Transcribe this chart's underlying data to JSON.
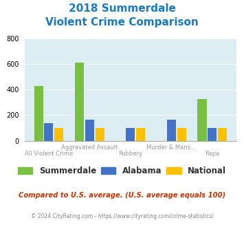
{
  "title_line1": "2018 Summerdale",
  "title_line2": "Violent Crime Comparison",
  "title_color": "#1a7abf",
  "categories": [
    "All Violent Crime",
    "Aggravated Assault",
    "Robbery",
    "Murder & Mans...",
    "Rape"
  ],
  "cat_labels_top": [
    "",
    "Aggravated Assault",
    "",
    "Murder & Mans...",
    ""
  ],
  "cat_labels_bot": [
    "All Violent Crime",
    "",
    "Robbery",
    "",
    "Rape"
  ],
  "summerdale": [
    430,
    610,
    0,
    0,
    325
  ],
  "alabama": [
    140,
    163,
    100,
    163,
    100
  ],
  "national": [
    100,
    100,
    100,
    100,
    100
  ],
  "color_summerdale": "#77c041",
  "color_alabama": "#4472c4",
  "color_national": "#ffc000",
  "ylim": [
    0,
    800
  ],
  "yticks": [
    0,
    200,
    400,
    600,
    800
  ],
  "bg_color": "#ddedf4",
  "footnote1": "Compared to U.S. average. (U.S. average equals 100)",
  "footnote2": "© 2024 CityRating.com - https://www.cityrating.com/crime-statistics/",
  "footnote1_color": "#cc3300",
  "footnote2_color": "#888888",
  "label_top_color": "#999999",
  "label_bot_color": "#999999"
}
